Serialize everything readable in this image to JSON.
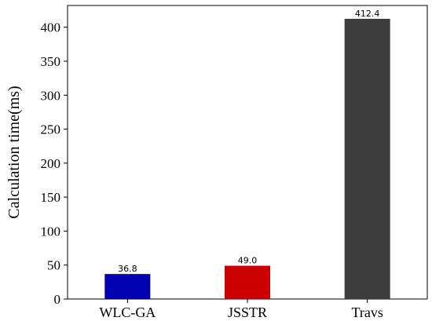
{
  "chart_data": {
    "type": "bar",
    "categories": [
      "WLC-GA",
      "JSSTR",
      "Travs"
    ],
    "values": [
      36.8,
      49.0,
      412.4
    ],
    "data_labels": [
      "36.8",
      "49.0",
      "412.4"
    ],
    "colors": [
      "#0000b0",
      "#cc0000",
      "#3d3d3d"
    ],
    "ylabel": "Calculation time(ms)",
    "xlabel": "",
    "ylim": [
      0,
      432
    ],
    "yticks": [
      0,
      50,
      100,
      150,
      200,
      250,
      300,
      350,
      400
    ],
    "grid": false,
    "legend": "none"
  }
}
